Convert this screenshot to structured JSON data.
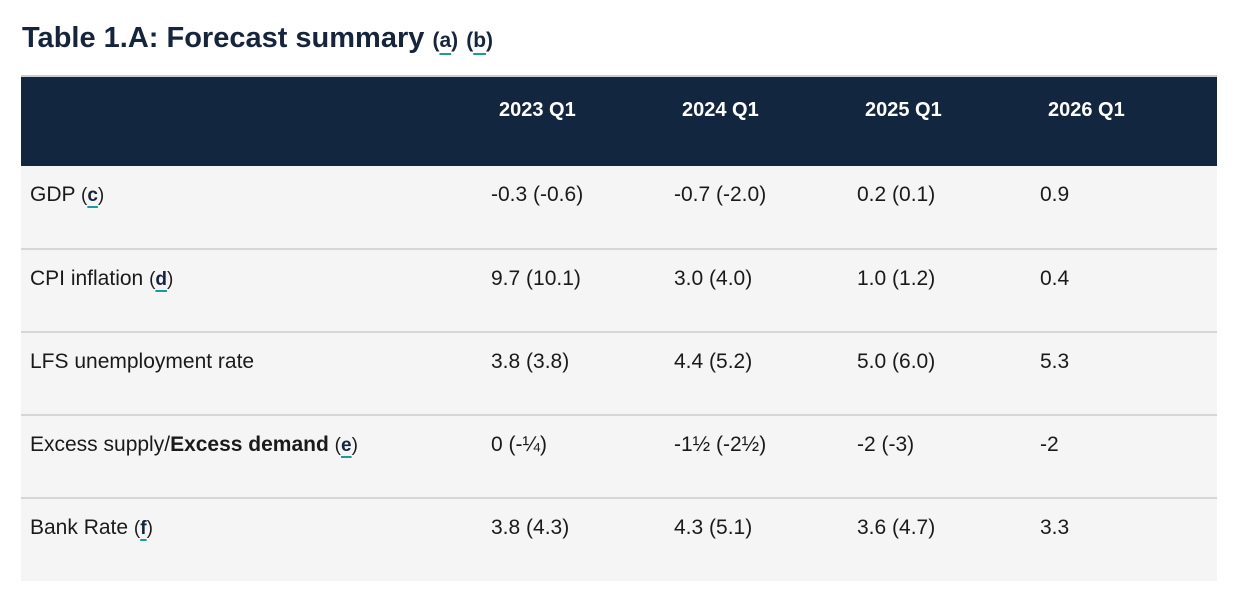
{
  "title": {
    "text": "Table 1.A: Forecast summary",
    "footnotes": [
      "a",
      "b"
    ]
  },
  "table": {
    "columns": [
      "",
      "2023 Q1",
      "2024 Q1",
      "2025 Q1",
      "2026 Q1"
    ],
    "rows": [
      {
        "label": "GDP",
        "label_bold": "",
        "footnote": "c",
        "values": [
          "-0.3 (-0.6)",
          "-0.7 (-2.0)",
          "0.2 (0.1)",
          "0.9"
        ]
      },
      {
        "label": "CPI inflation",
        "label_bold": "",
        "footnote": "d",
        "values": [
          "9.7 (10.1)",
          "3.0 (4.0)",
          "1.0 (1.2)",
          "0.4"
        ]
      },
      {
        "label": "LFS unemployment rate",
        "label_bold": "",
        "footnote": "",
        "values": [
          "3.8 (3.8)",
          "4.4 (5.2)",
          "5.0 (6.0)",
          "5.3"
        ]
      },
      {
        "label": "Excess supply/",
        "label_bold": "Excess demand",
        "footnote": "e",
        "values": [
          "0 (-¼)",
          "-1½ (-2½)",
          "-2 (-3)",
          "-2"
        ]
      },
      {
        "label": "Bank Rate",
        "label_bold": "",
        "footnote": "f",
        "values": [
          "3.8 (4.3)",
          "4.3 (5.1)",
          "3.6 (4.7)",
          "3.3"
        ]
      }
    ]
  },
  "colors": {
    "header_bg": "#13263f",
    "row_bg": "#f5f5f5",
    "footnote_underline": "#1b9a9a"
  }
}
